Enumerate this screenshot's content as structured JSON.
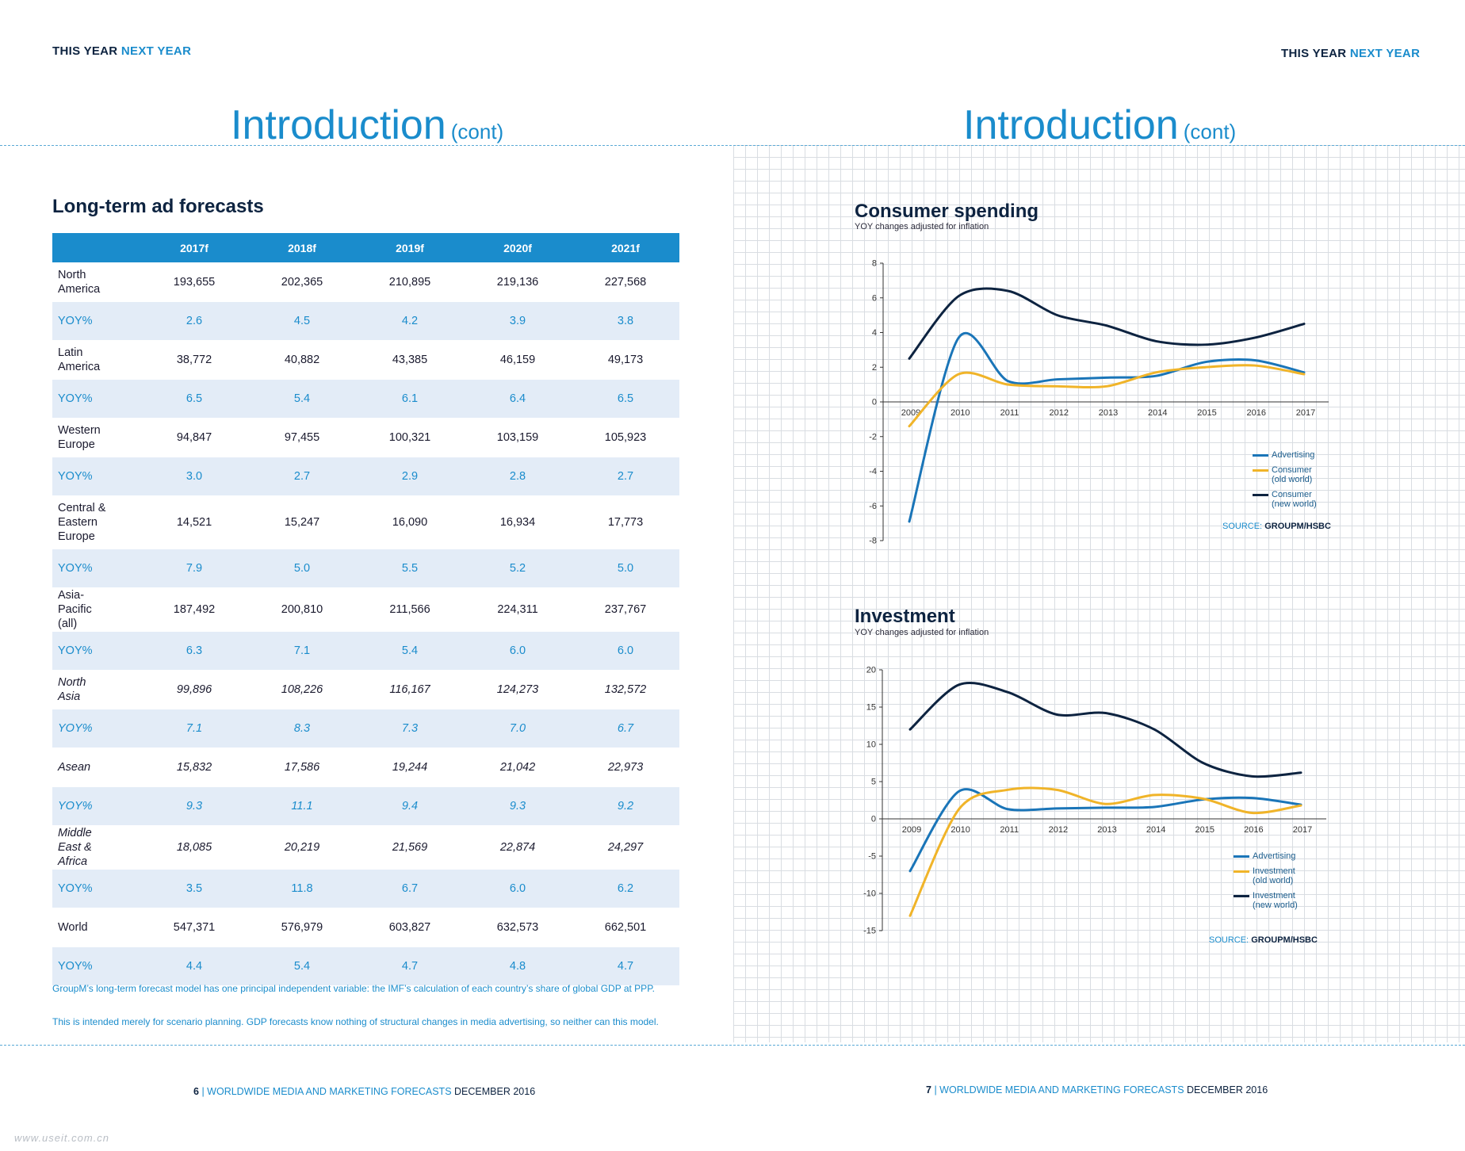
{
  "header": {
    "brand_a": "THIS YEAR",
    "brand_b": "NEXT YEAR"
  },
  "left_page": {
    "title": "Introduction",
    "title_suffix": "(cont)",
    "section_title": "Long-term ad forecasts",
    "table": {
      "columns": [
        "",
        "2017f",
        "2018f",
        "2019f",
        "2020f",
        "2021f"
      ],
      "rows": [
        {
          "label": "North America",
          "values": [
            "193,655",
            "202,365",
            "210,895",
            "219,136",
            "227,568"
          ]
        },
        {
          "label": "YOY%",
          "values": [
            "2.6",
            "4.5",
            "4.2",
            "3.9",
            "3.8"
          ]
        },
        {
          "label": "Latin America",
          "values": [
            "38,772",
            "40,882",
            "43,385",
            "46,159",
            "49,173"
          ]
        },
        {
          "label": "YOY%",
          "values": [
            "6.5",
            "5.4",
            "6.1",
            "6.4",
            "6.5"
          ]
        },
        {
          "label": "Western Europe",
          "values": [
            "94,847",
            "97,455",
            "100,321",
            "103,159",
            "105,923"
          ]
        },
        {
          "label": "YOY%",
          "values": [
            "3.0",
            "2.7",
            "2.9",
            "2.8",
            "2.7"
          ]
        },
        {
          "label": "Central & Eastern Europe",
          "values": [
            "14,521",
            "15,247",
            "16,090",
            "16,934",
            "17,773"
          ]
        },
        {
          "label": "YOY%",
          "values": [
            "7.9",
            "5.0",
            "5.5",
            "5.2",
            "5.0"
          ]
        },
        {
          "label": "Asia-Pacific (all)",
          "values": [
            "187,492",
            "200,810",
            "211,566",
            "224,311",
            "237,767"
          ]
        },
        {
          "label": "YOY%",
          "values": [
            "6.3",
            "7.1",
            "5.4",
            "6.0",
            "6.0"
          ]
        },
        {
          "label": "North Asia",
          "values": [
            "99,896",
            "108,226",
            "116,167",
            "124,273",
            "132,572"
          ]
        },
        {
          "label": "YOY%",
          "values": [
            "7.1",
            "8.3",
            "7.3",
            "7.0",
            "6.7"
          ]
        },
        {
          "label": "Asean",
          "values": [
            "15,832",
            "17,586",
            "19,244",
            "21,042",
            "22,973"
          ]
        },
        {
          "label": "YOY%",
          "values": [
            "9.3",
            "11.1",
            "9.4",
            "9.3",
            "9.2"
          ]
        },
        {
          "label": "Middle East & Africa",
          "values": [
            "18,085",
            "20,219",
            "21,569",
            "22,874",
            "24,297"
          ]
        },
        {
          "label": "YOY%",
          "values": [
            "3.5",
            "11.8",
            "6.7",
            "6.0",
            "6.2"
          ]
        },
        {
          "label": "World",
          "values": [
            "547,371",
            "576,979",
            "603,827",
            "632,573",
            "662,501"
          ]
        },
        {
          "label": "YOY%",
          "values": [
            "4.4",
            "5.4",
            "4.7",
            "4.8",
            "4.7"
          ]
        }
      ]
    },
    "note_1": "GroupM’s long-term forecast model has one principal independent variable: the IMF’s calculation of each country’s share of global GDP at PPP.",
    "note_2": "This is intended merely for scenario planning. GDP forecasts know nothing of structural changes in media advertising, so neither can this model.",
    "footer": {
      "page": "6",
      "sep": "|",
      "pub": "WORLDWIDE MEDIA AND MARKETING FORECASTS",
      "date": "DECEMBER 2016"
    }
  },
  "right_page": {
    "title": "Introduction",
    "title_suffix": "(cont)",
    "footer": {
      "page": "7",
      "sep": "|",
      "pub": "WORLDWIDE MEDIA AND MARKETING FORECASTS",
      "date": "DECEMBER 2016"
    }
  },
  "watermark": "www.useit.com.cn",
  "colors": {
    "accent": "#1a8ccc",
    "advertising": "#1a75b8",
    "old_world": "#f0b429",
    "new_world": "#0d2340"
  },
  "chart_data": [
    {
      "type": "line",
      "title": "Consumer spending",
      "subtitle": "YOY changes adjusted for inflation",
      "x": [
        "2009",
        "2010",
        "2011",
        "2012",
        "2013",
        "2014",
        "2015",
        "2016",
        "2017"
      ],
      "ylim": [
        -8,
        8
      ],
      "yticks": [
        8,
        6,
        4,
        2,
        0,
        -2,
        -4,
        -6,
        -8
      ],
      "series": [
        {
          "name": "Advertising",
          "color": "#1a75b8",
          "values": [
            -6.9,
            3.7,
            1.2,
            1.3,
            1.4,
            1.5,
            2.3,
            2.4,
            1.7
          ]
        },
        {
          "name": "Consumer (old world)",
          "color": "#f0b429",
          "values": [
            -1.4,
            1.6,
            1.0,
            0.9,
            0.9,
            1.7,
            2.0,
            2.1,
            1.6
          ]
        },
        {
          "name": "Consumer (new world)",
          "color": "#0d2340",
          "values": [
            2.5,
            6.1,
            6.4,
            5.0,
            4.4,
            3.5,
            3.3,
            3.7,
            4.5
          ]
        }
      ],
      "legend": [
        {
          "label_1": "Advertising",
          "label_2": ""
        },
        {
          "label_1": "Consumer",
          "label_2": "(old world)"
        },
        {
          "label_1": "Consumer",
          "label_2": "(new world)"
        }
      ],
      "source_label": "SOURCE:",
      "source": "GROUPM/HSBC"
    },
    {
      "type": "line",
      "title": "Investment",
      "subtitle": "YOY changes adjusted for inflation",
      "x": [
        "2009",
        "2010",
        "2011",
        "2012",
        "2013",
        "2014",
        "2015",
        "2016",
        "2017"
      ],
      "ylim": [
        -15,
        20
      ],
      "yticks": [
        20,
        15,
        10,
        5,
        0,
        -5,
        -10,
        -15
      ],
      "series": [
        {
          "name": "Advertising",
          "color": "#1a75b8",
          "values": [
            -7,
            3.7,
            1.3,
            1.4,
            1.5,
            1.6,
            2.6,
            2.8,
            1.9
          ]
        },
        {
          "name": "Investment (old world)",
          "color": "#f0b429",
          "values": [
            -13,
            1.3,
            3.9,
            3.9,
            2.0,
            3.2,
            2.7,
            0.8,
            1.8
          ]
        },
        {
          "name": "Investment (new world)",
          "color": "#0d2340",
          "values": [
            12,
            18,
            17,
            14,
            14.2,
            12,
            7.5,
            5.7,
            6.2
          ]
        }
      ],
      "legend": [
        {
          "label_1": "Advertising",
          "label_2": ""
        },
        {
          "label_1": "Investment",
          "label_2": "(old world)"
        },
        {
          "label_1": "Investment",
          "label_2": "(new world)"
        }
      ],
      "source_label": "SOURCE:",
      "source": "GROUPM/HSBC"
    }
  ]
}
